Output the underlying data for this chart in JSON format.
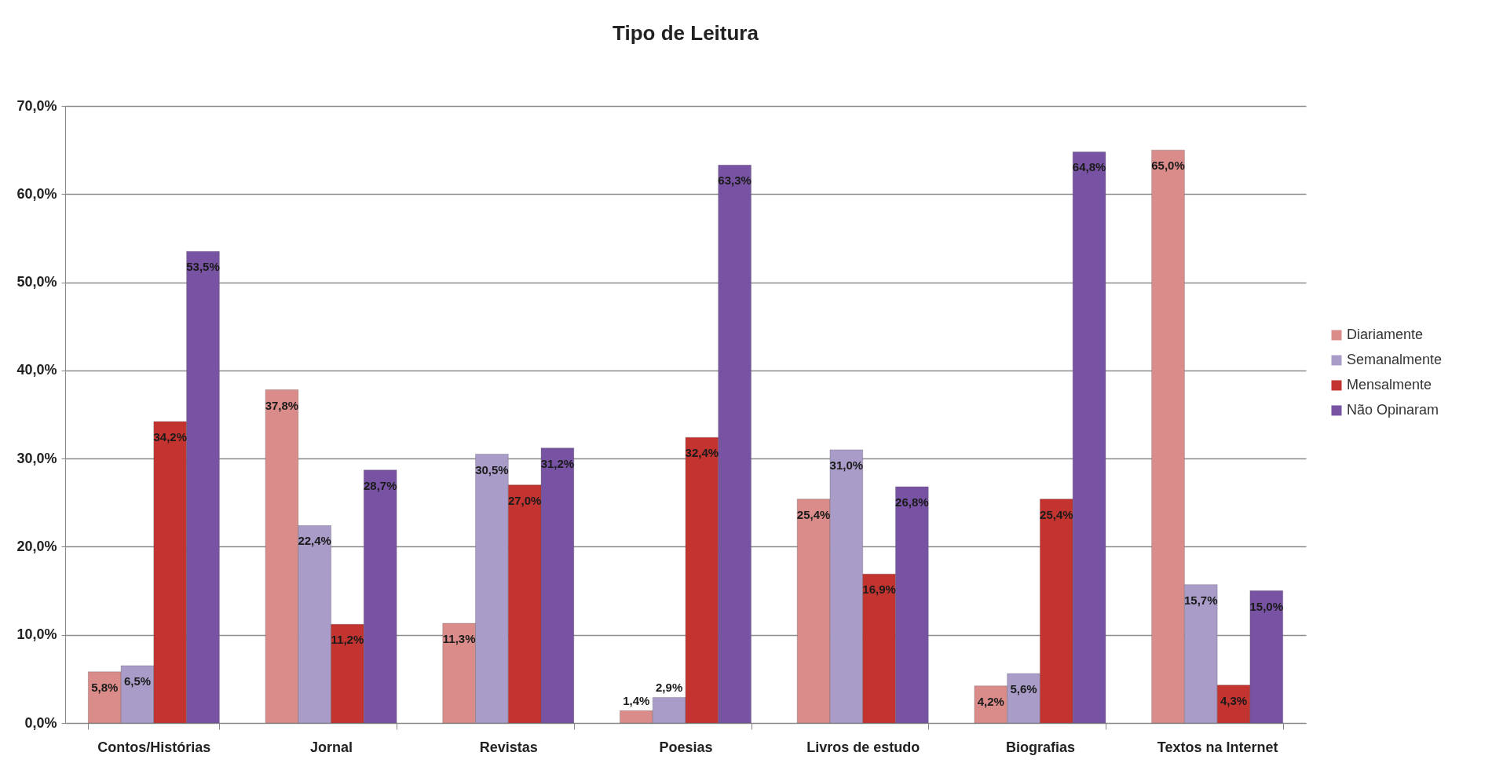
{
  "chart_data": {
    "type": "bar",
    "title": "Tipo de Leitura",
    "categories": [
      "Contos/Histórias",
      "Jornal",
      "Revistas",
      "Poesias",
      "Livros de estudo",
      "Biografias",
      "Textos na Internet"
    ],
    "series": [
      {
        "name": "Diariamente",
        "color": "#d98c8a",
        "values": [
          5.8,
          37.8,
          11.3,
          1.4,
          25.4,
          4.2,
          65.0
        ],
        "value_labels": [
          "5,8%",
          "37,8%",
          "11,3%",
          "1,4%",
          "25,4%",
          "4,2%",
          "65,0%"
        ]
      },
      {
        "name": "Semanalmente",
        "color": "#a99cc9",
        "values": [
          6.5,
          22.4,
          30.5,
          2.9,
          31.0,
          5.6,
          15.7
        ],
        "value_labels": [
          "6,5%",
          "22,4%",
          "30,5%",
          "2,9%",
          "31,0%",
          "5,6%",
          "15,7%"
        ]
      },
      {
        "name": "Mensalmente",
        "color": "#c33430",
        "values": [
          34.2,
          11.2,
          27.0,
          32.4,
          16.9,
          25.4,
          4.3
        ],
        "value_labels": [
          "34,2%",
          "11,2%",
          "27,0%",
          "32,4%",
          "16,9%",
          "25,4%",
          "4,3%"
        ]
      },
      {
        "name": "Não Opinaram",
        "color": "#7853a3",
        "values": [
          53.5,
          28.7,
          31.2,
          63.3,
          26.8,
          64.8,
          15.0
        ],
        "value_labels": [
          "53,5%",
          "28,7%",
          "31,2%",
          "63,3%",
          "26,8%",
          "64,8%",
          "15,0%"
        ]
      }
    ],
    "ylim": [
      0,
      70
    ],
    "yticks": [
      {
        "value": 0,
        "label": "0,0%"
      },
      {
        "value": 10,
        "label": "10,0%"
      },
      {
        "value": 20,
        "label": "20,0%"
      },
      {
        "value": 30,
        "label": "30,0%"
      },
      {
        "value": 40,
        "label": "40,0%"
      },
      {
        "value": 50,
        "label": "50,0%"
      },
      {
        "value": 60,
        "label": "60,0%"
      },
      {
        "value": 70,
        "label": "70,0%"
      }
    ],
    "grid": "y",
    "legend": "right"
  }
}
